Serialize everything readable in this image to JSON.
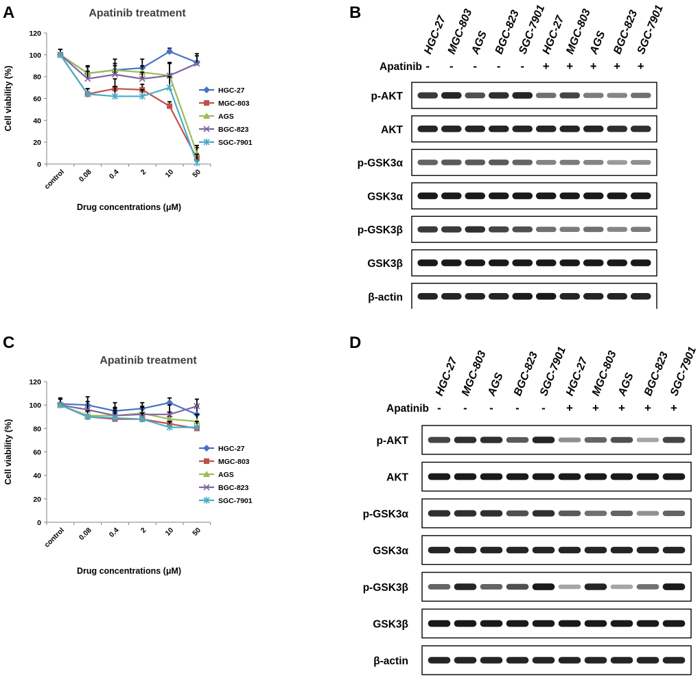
{
  "panels": {
    "A": "A",
    "B": "B",
    "C": "C",
    "D": "D"
  },
  "chart_data": [
    {
      "type": "line",
      "panel": "A",
      "title": "Apatinib treatment",
      "xlabel": "Drug concentrations (μM)",
      "ylabel": "Cell viability (%)",
      "categories": [
        "control",
        "0.08",
        "0.4",
        "2",
        "10",
        "50"
      ],
      "yticks": [
        "0",
        "20",
        "40",
        "60",
        "80",
        "100",
        "120"
      ],
      "ylim": [
        0,
        120
      ],
      "legend_position": "right",
      "series": [
        {
          "name": "HGC-27",
          "color": "#4472C4",
          "marker": "diamond",
          "values": [
            100,
            83,
            86,
            88,
            103,
            93
          ],
          "err": [
            5,
            7,
            10,
            8,
            3,
            8
          ]
        },
        {
          "name": "MGC-803",
          "color": "#C0504D",
          "marker": "square",
          "values": [
            100,
            64,
            69,
            68,
            53,
            5
          ],
          "err": [
            5,
            5,
            9,
            5,
            4,
            10
          ]
        },
        {
          "name": "AGS",
          "color": "#9BBB59",
          "marker": "triangle",
          "values": [
            100,
            83,
            86,
            84,
            81,
            10
          ],
          "err": [
            5,
            6,
            6,
            6,
            11,
            7
          ]
        },
        {
          "name": "BGC-823",
          "color": "#8064A2",
          "marker": "x",
          "values": [
            100,
            78,
            82,
            78,
            81,
            92
          ],
          "err": [
            5,
            7,
            8,
            6,
            12,
            7
          ]
        },
        {
          "name": "SGC-7901",
          "color": "#4BACC6",
          "marker": "star",
          "values": [
            100,
            64,
            62,
            62,
            70,
            1
          ],
          "err": [
            5,
            5,
            9,
            6,
            10,
            8
          ]
        }
      ]
    },
    {
      "type": "line",
      "panel": "C",
      "title": "Apatinib treatment",
      "xlabel": "Drug concentrations (μM)",
      "ylabel": "Cell viability (%)",
      "categories": [
        "control",
        "0.08",
        "0.4",
        "2",
        "10",
        "50"
      ],
      "yticks": [
        "0",
        "20",
        "40",
        "60",
        "80",
        "100",
        "120"
      ],
      "ylim": [
        0,
        120
      ],
      "legend_position": "right",
      "series": [
        {
          "name": "HGC-27",
          "color": "#4472C4",
          "marker": "diamond",
          "values": [
            101,
            100,
            95,
            97,
            102,
            92
          ],
          "err": [
            5,
            7,
            7,
            5,
            4,
            7
          ]
        },
        {
          "name": "MGC-803",
          "color": "#C0504D",
          "marker": "square",
          "values": [
            100,
            90,
            88,
            88,
            84,
            80
          ],
          "err": [
            5,
            5,
            5,
            5,
            6,
            5
          ]
        },
        {
          "name": "AGS",
          "color": "#9BBB59",
          "marker": "triangle",
          "values": [
            100,
            91,
            91,
            93,
            88,
            86
          ],
          "err": [
            5,
            6,
            6,
            6,
            6,
            6
          ]
        },
        {
          "name": "BGC-823",
          "color": "#8064A2",
          "marker": "x",
          "values": [
            100,
            96,
            91,
            92,
            92,
            99
          ],
          "err": [
            5,
            7,
            7,
            6,
            8,
            6
          ]
        },
        {
          "name": "SGC-7901",
          "color": "#4BACC6",
          "marker": "star",
          "values": [
            100,
            90,
            89,
            88,
            81,
            81
          ],
          "err": [
            5,
            5,
            6,
            5,
            5,
            5
          ]
        }
      ]
    }
  ],
  "blots": [
    {
      "panel": "B",
      "lanes": [
        "HGC-27",
        "MGC-803",
        "AGS",
        "BGC-823",
        "SGC-7901",
        "HGC-27",
        "MGC-803",
        "AGS",
        "BGC-823",
        "SGC-7901"
      ],
      "treatment_label": "Apatinib",
      "treatment": [
        "-",
        "-",
        "-",
        "-",
        "-",
        "+",
        "+",
        "+",
        "+",
        "+"
      ],
      "rows": [
        {
          "label": "p-AKT",
          "intensity": [
            0.8,
            0.9,
            0.7,
            0.85,
            0.9,
            0.55,
            0.75,
            0.5,
            0.45,
            0.55
          ]
        },
        {
          "label": "AKT",
          "intensity": [
            0.9,
            0.9,
            0.9,
            0.9,
            0.9,
            0.9,
            0.9,
            0.9,
            0.85,
            0.85
          ]
        },
        {
          "label": "p-GSK3α",
          "intensity": [
            0.6,
            0.65,
            0.65,
            0.65,
            0.6,
            0.45,
            0.5,
            0.45,
            0.35,
            0.4
          ]
        },
        {
          "label": "GSK3α",
          "intensity": [
            0.95,
            0.95,
            0.95,
            0.95,
            0.95,
            0.95,
            0.95,
            0.95,
            0.95,
            0.95
          ]
        },
        {
          "label": "p-GSK3β",
          "intensity": [
            0.8,
            0.8,
            0.85,
            0.75,
            0.7,
            0.55,
            0.5,
            0.55,
            0.45,
            0.5
          ]
        },
        {
          "label": "GSK3β",
          "intensity": [
            0.95,
            0.95,
            0.95,
            0.95,
            0.95,
            0.95,
            0.95,
            0.95,
            0.95,
            0.95
          ]
        },
        {
          "label": "β-actin",
          "intensity": [
            0.9,
            0.9,
            0.9,
            0.9,
            0.95,
            0.95,
            0.9,
            0.9,
            0.9,
            0.9
          ]
        }
      ]
    },
    {
      "panel": "D",
      "lanes": [
        "HGC-27",
        "MGC-803",
        "AGS",
        "BGC-823",
        "SGC-7901",
        "HGC-27",
        "MGC-803",
        "AGS",
        "BGC-823",
        "SGC-7901"
      ],
      "treatment_label": "Apatinib",
      "treatment": [
        "-",
        "-",
        "-",
        "-",
        "-",
        "+",
        "+",
        "+",
        "+",
        "+"
      ],
      "rows": [
        {
          "label": "p-AKT",
          "intensity": [
            0.75,
            0.85,
            0.85,
            0.65,
            0.9,
            0.4,
            0.6,
            0.7,
            0.3,
            0.75
          ]
        },
        {
          "label": "AKT",
          "intensity": [
            0.95,
            0.95,
            0.95,
            0.95,
            0.95,
            0.95,
            0.95,
            0.95,
            0.95,
            0.95
          ]
        },
        {
          "label": "p-GSK3α",
          "intensity": [
            0.85,
            0.85,
            0.85,
            0.7,
            0.85,
            0.65,
            0.55,
            0.6,
            0.4,
            0.6
          ]
        },
        {
          "label": "GSK3α",
          "intensity": [
            0.9,
            0.9,
            0.9,
            0.9,
            0.9,
            0.9,
            0.9,
            0.9,
            0.9,
            0.9
          ]
        },
        {
          "label": "p-GSK3β",
          "intensity": [
            0.6,
            0.9,
            0.6,
            0.7,
            0.95,
            0.3,
            0.9,
            0.3,
            0.55,
            0.95
          ]
        },
        {
          "label": "GSK3β",
          "intensity": [
            0.95,
            0.95,
            0.95,
            0.95,
            0.95,
            0.95,
            0.95,
            0.95,
            0.95,
            0.95
          ]
        },
        {
          "label": "β-actin",
          "intensity": [
            0.9,
            0.9,
            0.9,
            0.9,
            0.9,
            0.9,
            0.9,
            0.9,
            0.9,
            0.9
          ]
        }
      ]
    }
  ]
}
